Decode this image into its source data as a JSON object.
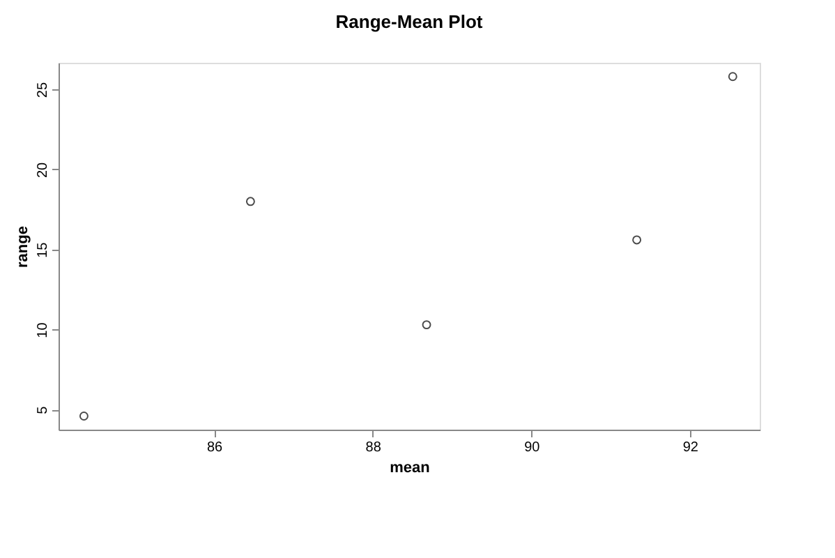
{
  "chart_data": {
    "type": "scatter",
    "title": "Range-Mean Plot",
    "xlabel": "mean",
    "ylabel": "range",
    "x": [
      84.36,
      86.46,
      88.68,
      91.33,
      92.54
    ],
    "series": [
      {
        "color": "#000000",
        "values": [
          4.6,
          18.0,
          10.3,
          15.6,
          25.8
        ]
      }
    ],
    "xlim": [
      84.04,
      92.88
    ],
    "xticks": [
      86,
      88,
      90,
      92
    ],
    "ylim": [
      3.75,
      26.66
    ],
    "yticks": [
      5,
      10,
      15,
      20,
      25
    ],
    "marker": "circle",
    "grid": false
  }
}
